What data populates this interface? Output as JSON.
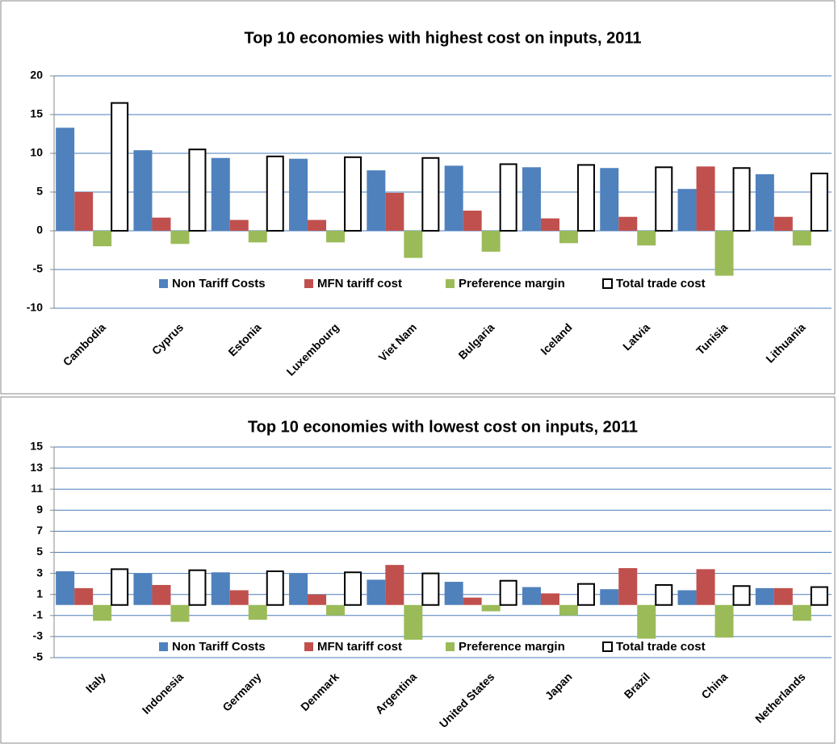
{
  "chart_data": [
    {
      "type": "bar",
      "title": "Top 10 economies with highest cost on inputs,  2011",
      "categories": [
        "Cambodia",
        "Cyprus",
        "Estonia",
        "Luxembourg",
        "Viet Nam",
        "Bulgaria",
        "Iceland",
        "Latvia",
        "Tunisia",
        "Lithuania"
      ],
      "series": [
        {
          "name": "Non Tariff Costs",
          "color": "#4f81bd",
          "values": [
            13.3,
            10.4,
            9.4,
            9.3,
            7.8,
            8.4,
            8.2,
            8.1,
            5.4,
            7.3
          ]
        },
        {
          "name": "MFN tariff cost",
          "color": "#c0504d",
          "values": [
            5.0,
            1.7,
            1.4,
            1.4,
            4.9,
            2.6,
            1.6,
            1.8,
            8.3,
            1.8
          ]
        },
        {
          "name": "Preference margin",
          "color": "#9bbb59",
          "values": [
            -2.0,
            -1.7,
            -1.5,
            -1.5,
            -3.5,
            -2.7,
            -1.6,
            -1.9,
            -5.8,
            -1.9
          ]
        },
        {
          "name": "Total trade cost",
          "color": "#ffffff",
          "edge_color": "#000000",
          "values": [
            16.5,
            10.5,
            9.6,
            9.5,
            9.4,
            8.6,
            8.5,
            8.2,
            8.1,
            7.4
          ]
        }
      ],
      "ylim": [
        -10,
        20
      ],
      "yticks": [
        -10,
        -5,
        0,
        5,
        10,
        15,
        20
      ],
      "grid": true,
      "legend": "bottom"
    },
    {
      "type": "bar",
      "title": "Top 10 economies with lowest cost on inputs,  2011",
      "categories": [
        "Italy",
        "Indonesia",
        "Germany",
        "Denmark",
        "Argentina",
        "United States",
        "Japan",
        "Brazil",
        "China",
        "Netherlands"
      ],
      "series": [
        {
          "name": "Non Tariff Costs",
          "color": "#4f81bd",
          "values": [
            3.2,
            3.0,
            3.1,
            3.0,
            2.4,
            2.2,
            1.7,
            1.5,
            1.4,
            1.6
          ]
        },
        {
          "name": "MFN tariff cost",
          "color": "#c0504d",
          "values": [
            1.6,
            1.9,
            1.4,
            1.0,
            3.8,
            0.7,
            1.1,
            3.5,
            3.4,
            1.6
          ]
        },
        {
          "name": "Preference margin",
          "color": "#9bbb59",
          "values": [
            -1.5,
            -1.6,
            -1.4,
            -1.0,
            -3.3,
            -0.6,
            -1.0,
            -3.2,
            -3.1,
            -1.5
          ]
        },
        {
          "name": "Total trade cost",
          "color": "#ffffff",
          "edge_color": "#000000",
          "values": [
            3.4,
            3.3,
            3.2,
            3.1,
            3.0,
            2.3,
            2.0,
            1.9,
            1.8,
            1.7
          ]
        }
      ],
      "ylim": [
        -5,
        15
      ],
      "yticks": [
        -5,
        -3,
        -1,
        1,
        3,
        5,
        7,
        9,
        11,
        13,
        15
      ],
      "grid": true,
      "legend": "bottom"
    }
  ]
}
